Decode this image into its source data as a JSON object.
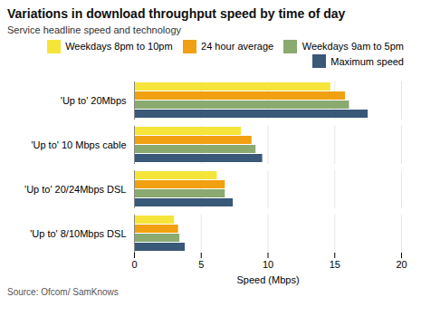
{
  "chart_data": {
    "type": "bar",
    "orientation": "horizontal",
    "title": "Variations in download throughput speed by time of day",
    "subtitle": "Service headline speed and technology",
    "source": "Source: Ofcom/ SamKnows",
    "xlabel": "Speed (Mbps)",
    "categories": [
      "'Up to' 20Mbps",
      "'Up to' 10 Mbps cable",
      "'Up to' 20/24Mbps DSL",
      "'Up to' 8/10Mbps DSL"
    ],
    "series": [
      {
        "name": "Weekdays 8pm to 10pm",
        "color": "#f5e53a",
        "values": [
          14.7,
          8.0,
          6.2,
          3.0
        ]
      },
      {
        "name": "24 hour average",
        "color": "#f0a010",
        "values": [
          15.8,
          8.8,
          6.8,
          3.3
        ]
      },
      {
        "name": "Weekdays 9am to 5pm",
        "color": "#8aaa70",
        "values": [
          16.1,
          9.1,
          6.8,
          3.4
        ]
      },
      {
        "name": "Maximum speed",
        "color": "#3a5878",
        "values": [
          17.5,
          9.6,
          7.4,
          3.8
        ]
      }
    ],
    "xlim": [
      0,
      20
    ],
    "xticks": [
      0,
      5,
      10,
      15,
      20
    ],
    "grid": true,
    "legend": "upper right"
  }
}
